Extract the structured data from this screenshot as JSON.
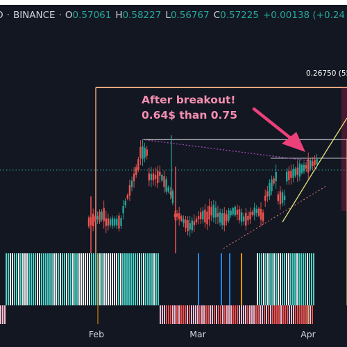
{
  "header": {
    "symbol_fragment": "O",
    "exchange": "BINANCE",
    "open_label": "O",
    "open": "0.57061",
    "high_label": "H",
    "high": "0.58227",
    "low_label": "L",
    "low": "0.56767",
    "close_label": "C",
    "close": "0.57225",
    "change": "+0.00138 (+0.24"
  },
  "colors": {
    "background": "#131722",
    "up": "#26a69a",
    "down": "#ef5350",
    "annotation": "#f48fb1",
    "trendline_support": "#e8e37a",
    "box_outline": "#f5a880"
  },
  "annotation": {
    "line1": "After breakout!",
    "line2": "0.64$ than 0.75"
  },
  "price_tag": "0.26750 (55",
  "chart_data": {
    "type": "candlestick",
    "x_ticks": [
      "Feb",
      "Mar",
      "Apr"
    ],
    "annotation_text": [
      "After breakout!",
      "0.64$ than 0.75"
    ],
    "price_label": "0.26750 (55",
    "legend": "none",
    "grid": false
  }
}
